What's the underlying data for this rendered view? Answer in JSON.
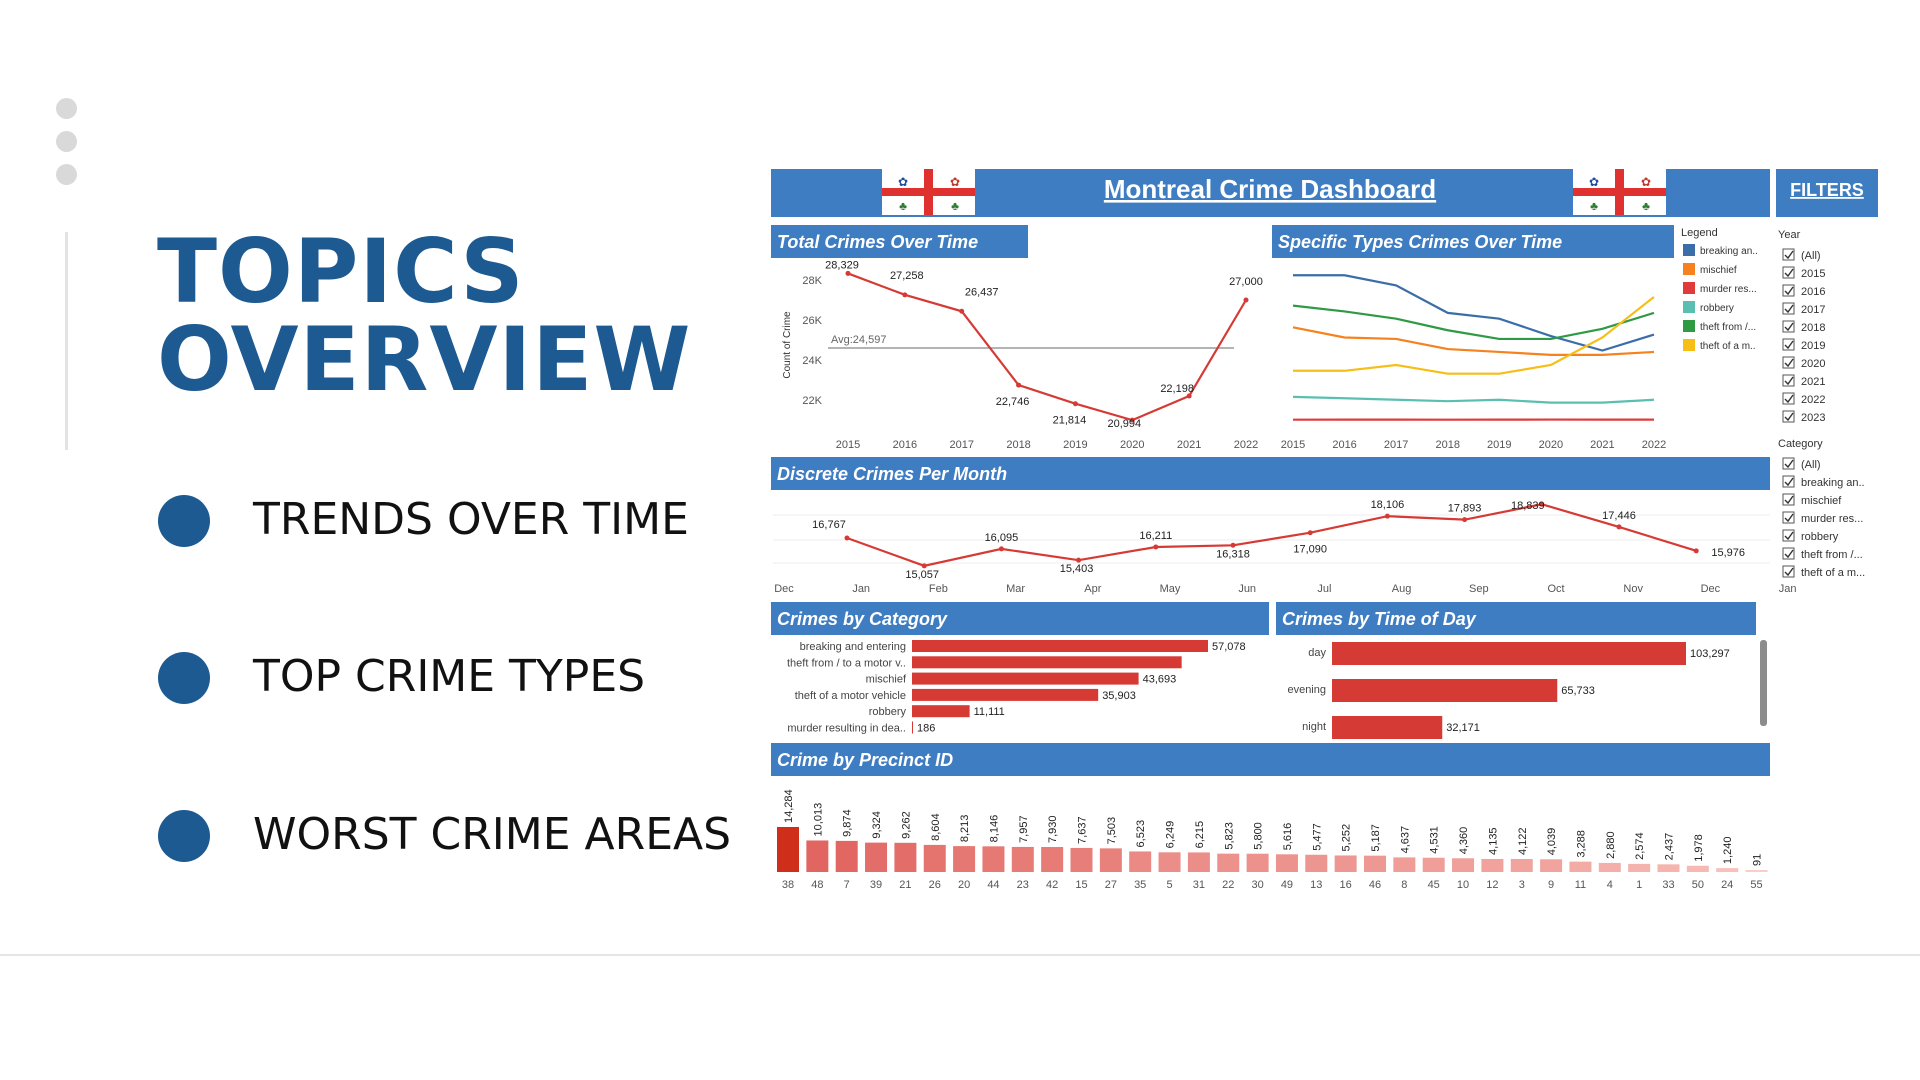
{
  "slide": {
    "title_lines": [
      "TOPICS",
      "OVERVIEW"
    ],
    "bullets": [
      "TRENDS OVER TIME",
      "TOP CRIME TYPES",
      "WORST CRIME AREAS"
    ],
    "accent": "#1d5a91"
  },
  "dashboard": {
    "title": "Montreal Crime Dashboard",
    "filters_label": "FILTERS",
    "header_color": "#3f7dc2",
    "bar_color": "#d63a35",
    "legend_title": "Legend",
    "year_filter": {
      "title": "Year",
      "options": [
        "(All)",
        "2015",
        "2016",
        "2017",
        "2018",
        "2019",
        "2020",
        "2021",
        "2022",
        "2023"
      ]
    },
    "category_filter": {
      "title": "Category",
      "options": [
        "(All)",
        "breaking an..",
        "mischief",
        "murder res...",
        "robbery",
        "theft from /...",
        "theft of a m..."
      ]
    }
  },
  "chart_data": [
    {
      "type": "line",
      "title": "Total Crimes Over Time",
      "ylabel": "Count of Crime",
      "x": [
        "2015",
        "2016",
        "2017",
        "2018",
        "2019",
        "2020",
        "2021",
        "2022"
      ],
      "values": [
        28329,
        27258,
        26437,
        22746,
        21814,
        20994,
        22198,
        27000
      ],
      "point_labels": [
        "28,329",
        "27,258",
        "26,437",
        "22,746",
        "21,814",
        "20,994",
        "22,198",
        "27,000"
      ],
      "yticks": [
        "22K",
        "24K",
        "26K",
        "28K"
      ],
      "ylim": [
        21000,
        28500
      ],
      "reference_line": {
        "value": 24597,
        "label": "Avg:24,597"
      }
    },
    {
      "type": "line",
      "title": "Specific Types Crimes Over Time",
      "x": [
        "2015",
        "2016",
        "2017",
        "2018",
        "2019",
        "2020",
        "2021",
        "2022"
      ],
      "series": [
        {
          "name": "breaking an..",
          "color": "#3b6ea8",
          "values": [
            10000,
            10000,
            9300,
            7400,
            7000,
            5800,
            4800,
            5900
          ]
        },
        {
          "name": "mischief",
          "color": "#f5821f",
          "values": [
            6400,
            5700,
            5600,
            4900,
            4700,
            4500,
            4500,
            4700
          ]
        },
        {
          "name": "murder res...",
          "color": "#e03b3b",
          "values": [
            20,
            25,
            25,
            20,
            25,
            30,
            25,
            25
          ]
        },
        {
          "name": "robbery",
          "color": "#5bbfb0",
          "values": [
            1600,
            1500,
            1400,
            1300,
            1400,
            1200,
            1200,
            1400
          ]
        },
        {
          "name": "theft from /...",
          "color": "#2f9a44",
          "values": [
            7900,
            7500,
            7000,
            6200,
            5600,
            5600,
            6300,
            7400
          ]
        },
        {
          "name": "theft of a m..",
          "color": "#f7be16",
          "values": [
            3400,
            3400,
            3800,
            3200,
            3200,
            3800,
            5700,
            8500
          ]
        }
      ]
    },
    {
      "type": "line",
      "title": "Discrete Crimes Per Month",
      "x": [
        "Jan",
        "Feb",
        "Mar",
        "Apr",
        "May",
        "Jun",
        "Jul",
        "Aug",
        "Sep",
        "Oct",
        "Nov",
        "Dec"
      ],
      "axis_labels": [
        "Dec",
        "Jan",
        "Feb",
        "Mar",
        "Apr",
        "May",
        "Jun",
        "Jul",
        "Aug",
        "Sep",
        "Oct",
        "Nov",
        "Dec",
        "Jan"
      ],
      "values": [
        16767,
        15057,
        16095,
        15403,
        16211,
        16318,
        17090,
        18106,
        17893,
        18839,
        17446,
        15976
      ],
      "point_labels": [
        "16,767",
        "15,057",
        "16,095",
        "15,403",
        "16,211",
        "16,318",
        "17,090",
        "18,106",
        "17,893",
        "18,839",
        "17,446",
        "15,976"
      ],
      "ylim": [
        14800,
        19100
      ]
    },
    {
      "type": "bar",
      "orientation": "horizontal",
      "title": "Crimes by Category",
      "categories": [
        "breaking and entering",
        "theft from / to a motor v..",
        "mischief",
        "theft of a motor vehicle",
        "robbery",
        "murder resulting in dea.."
      ],
      "values": [
        57078,
        52000,
        43693,
        35903,
        11111,
        186
      ],
      "value_labels": [
        "57,078",
        "",
        "43,693",
        "35,903",
        "11,111",
        "186"
      ]
    },
    {
      "type": "bar",
      "orientation": "horizontal",
      "title": "Crimes by Time of Day",
      "categories": [
        "day",
        "evening",
        "night"
      ],
      "values": [
        103297,
        65733,
        32171
      ],
      "value_labels": [
        "103,297",
        "65,733",
        "32,171"
      ]
    },
    {
      "type": "bar",
      "title": "Crime by Precinct ID",
      "categories": [
        "38",
        "48",
        "7",
        "39",
        "21",
        "26",
        "20",
        "44",
        "23",
        "42",
        "15",
        "27",
        "35",
        "5",
        "31",
        "22",
        "30",
        "49",
        "13",
        "16",
        "46",
        "8",
        "45",
        "10",
        "12",
        "3",
        "9",
        "11",
        "4",
        "1",
        "33",
        "50",
        "24",
        "55"
      ],
      "values": [
        14284,
        10013,
        9874,
        9324,
        9262,
        8604,
        8213,
        8146,
        7957,
        7930,
        7637,
        7503,
        6523,
        6249,
        6215,
        5823,
        5800,
        5616,
        5477,
        5252,
        5187,
        4637,
        4531,
        4360,
        4135,
        4122,
        4039,
        3288,
        2880,
        2574,
        2437,
        1978,
        1240,
        91
      ],
      "value_labels": [
        "14,284",
        "10,013",
        "9,874",
        "9,324",
        "9,262",
        "8,604",
        "8,213",
        "8,146",
        "7,957",
        "7,930",
        "7,637",
        "7,503",
        "6,523",
        "6,249",
        "6,215",
        "5,823",
        "5,800",
        "5,616",
        "5,477",
        "5,252",
        "5,187",
        "4,637",
        "4,531",
        "4,360",
        "4,135",
        "4,122",
        "4,039",
        "3,288",
        "2,880",
        "2,574",
        "2,437",
        "1,978",
        "1,240",
        "91"
      ]
    }
  ]
}
